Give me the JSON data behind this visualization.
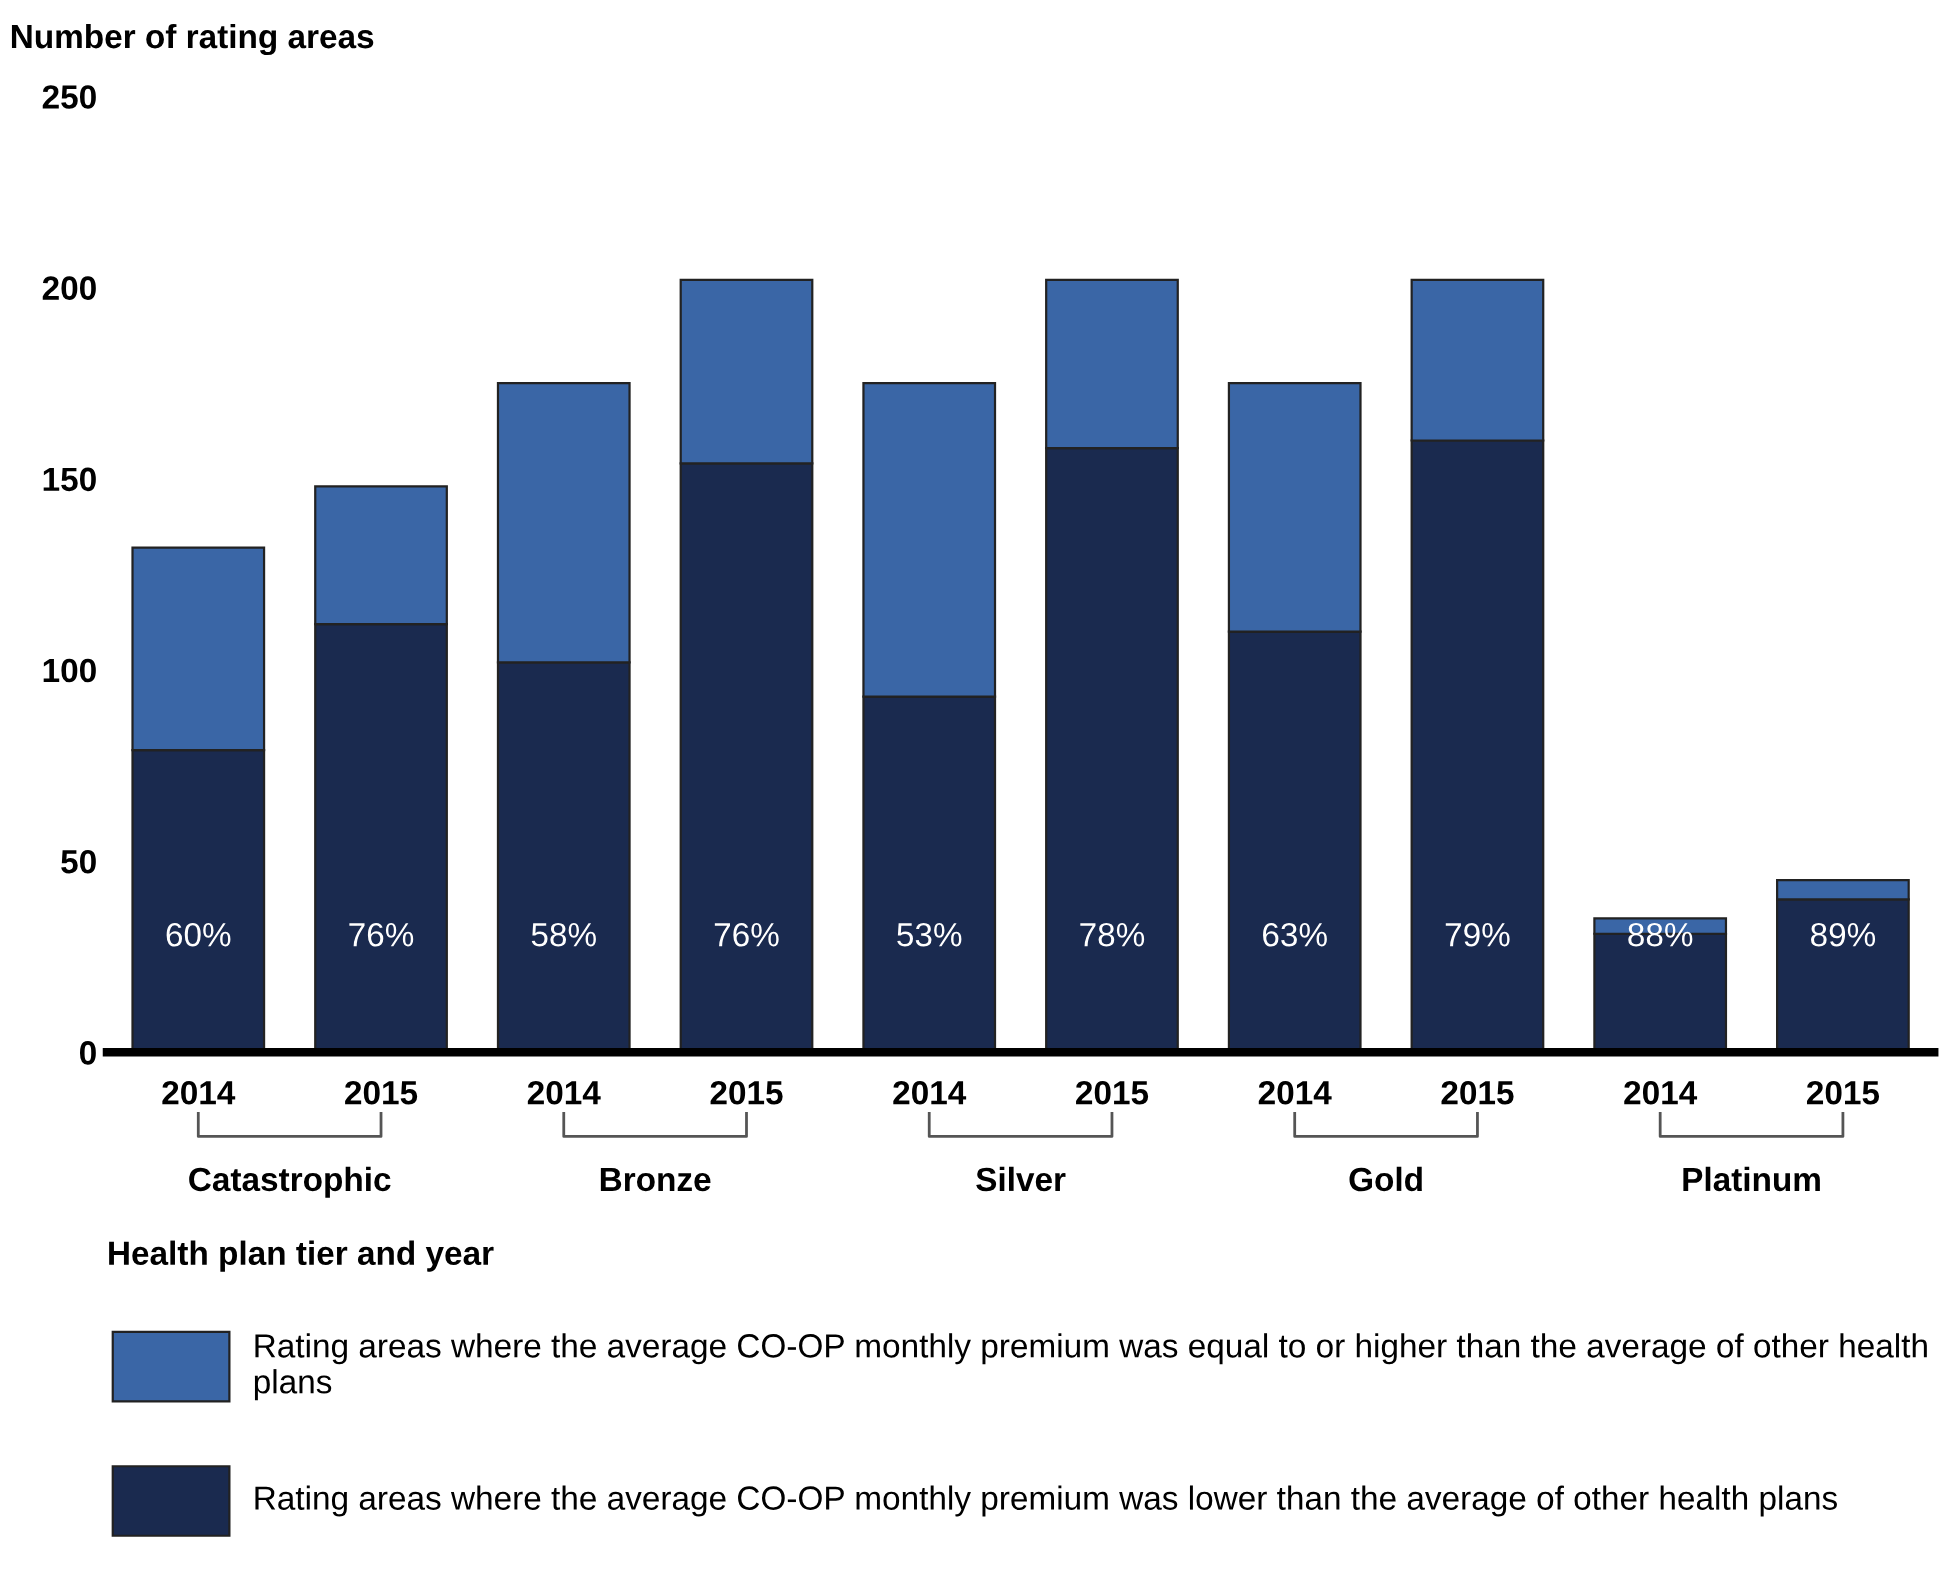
{
  "chart_data": {
    "type": "bar",
    "stacked": true,
    "ylabel": "Number of rating areas",
    "xlabel": "Health plan tier and year",
    "categories": [
      "2014",
      "2015",
      "2014",
      "2015",
      "2014",
      "2015",
      "2014",
      "2015",
      "2014",
      "2015"
    ],
    "annotations": [
      "Catastrophic",
      "Bronze",
      "Silver",
      "Gold",
      "Platinum",
      "60%",
      "76%",
      "58%",
      "76%",
      "53%",
      "78%",
      "63%",
      "79%",
      "88%",
      "89%"
    ],
    "series": [
      {
        "name": "Rating areas where the average CO-OP monthly premium was lower than the average of other health plans",
        "color": "#1a2a4f",
        "values": [
          79,
          112,
          102,
          154,
          93,
          158,
          110,
          160,
          31,
          40
        ]
      },
      {
        "name": "Rating areas where the average CO-OP monthly premium was equal to or higher than the average of other health plans",
        "color": "#3a66a6",
        "values": [
          53,
          36,
          73,
          48,
          82,
          44,
          65,
          42,
          4,
          5
        ]
      }
    ],
    "ylim": [
      0,
      250
    ],
    "yticks": [
      0,
      50,
      100,
      150,
      200,
      250
    ],
    "grid": false,
    "legend": "bottom"
  }
}
